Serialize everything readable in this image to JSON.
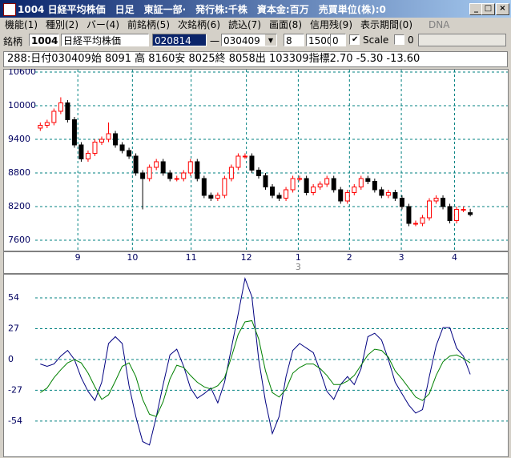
{
  "window": {
    "title": "1004 日経平均株価　日足　東証一部·　発行株:千株　資本金:百万　売買単位(株):0"
  },
  "menu": [
    "機能(1)",
    "種別(2)",
    "バー(4)",
    "前銘柄(5)",
    "次銘柄(6)",
    "読込(7)",
    "画面(8)",
    "信用残(9)",
    "表示期間(0)"
  ],
  "dna": "DNA",
  "toolbar": {
    "label": "銘柄",
    "code": "1004",
    "name": "日経平均株価",
    "from": "020814",
    "dash": "一",
    "to": "030409",
    "field1": "8",
    "field2": "1500",
    "field3": "0",
    "scale_label": "Scale",
    "field4": "0"
  },
  "info_line": "288:日付030409始 8091 高 8160安 8025終 8058出 103309指標2.70  -5.30  -13.60",
  "chart_data": [
    {
      "type": "candlestick",
      "open": [
        9600,
        9650,
        9700,
        9900,
        10050,
        9750,
        9300,
        9050,
        9150,
        9350,
        9400,
        9500,
        9300,
        9200,
        9100,
        8800,
        8700,
        8900,
        9000,
        8800,
        8700,
        8700,
        8800,
        9000,
        8700,
        8400,
        8350,
        8400,
        8700,
        8900,
        9100,
        9100,
        8850,
        8750,
        8550,
        8400,
        8350,
        8500,
        8700,
        8700,
        8450,
        8550,
        8600,
        8700,
        8500,
        8300,
        8450,
        8550,
        8700,
        8650,
        8500,
        8400,
        8450,
        8350,
        8200,
        7900,
        7900,
        8000,
        8300,
        8350,
        8200,
        7950,
        8150,
        8091
      ],
      "high": [
        9700,
        9750,
        9950,
        10150,
        10100,
        9800,
        9350,
        9200,
        9400,
        9450,
        9700,
        9550,
        9350,
        9250,
        9150,
        8850,
        8950,
        9050,
        9050,
        8850,
        8750,
        8850,
        9050,
        9050,
        8750,
        8450,
        8450,
        8750,
        8950,
        9150,
        9150,
        9150,
        8900,
        8800,
        8600,
        8450,
        8550,
        8750,
        8750,
        8750,
        8600,
        8650,
        8750,
        8750,
        8550,
        8500,
        8600,
        8750,
        8750,
        8700,
        8550,
        8500,
        8500,
        8400,
        8250,
        7950,
        8050,
        8350,
        8400,
        8400,
        8250,
        8200,
        8200,
        8160
      ],
      "low": [
        9550,
        9600,
        9650,
        9850,
        9700,
        9250,
        9000,
        9000,
        9100,
        9300,
        9350,
        9250,
        9150,
        9050,
        8750,
        8150,
        8650,
        8850,
        8750,
        8650,
        8650,
        8650,
        8750,
        8650,
        8350,
        8300,
        8300,
        8350,
        8650,
        8850,
        9050,
        8800,
        8700,
        8500,
        8350,
        8300,
        8300,
        8450,
        8650,
        8400,
        8400,
        8500,
        8550,
        8450,
        8250,
        8250,
        8400,
        8500,
        8600,
        8450,
        8350,
        8350,
        8300,
        8150,
        7850,
        7850,
        7850,
        7950,
        8250,
        8150,
        7900,
        7900,
        8100,
        8025
      ],
      "close": [
        9650,
        9700,
        9900,
        10050,
        9750,
        9300,
        9050,
        9150,
        9350,
        9400,
        9500,
        9300,
        9200,
        9100,
        8800,
        8700,
        8900,
        9000,
        8800,
        8700,
        8700,
        8800,
        9000,
        8700,
        8400,
        8350,
        8400,
        8700,
        8900,
        9100,
        9100,
        8850,
        8750,
        8550,
        8400,
        8350,
        8500,
        8700,
        8700,
        8450,
        8550,
        8600,
        8700,
        8500,
        8300,
        8450,
        8550,
        8700,
        8650,
        8500,
        8400,
        8450,
        8350,
        8200,
        7900,
        7900,
        8000,
        8300,
        8350,
        8200,
        7950,
        8150,
        8150,
        8058
      ],
      "up_color": "#ff0000",
      "down_color": "#000000",
      "xlim": [
        -5.2,
        68.5
      ],
      "xticks": [
        {
          "value": 5.5,
          "label": "9"
        },
        {
          "value": 13.5,
          "label": "10"
        },
        {
          "value": 22.1,
          "label": "11"
        },
        {
          "value": 30.2,
          "label": "12"
        },
        {
          "value": 37.8,
          "label": "1"
        },
        {
          "value": 45.3,
          "label": "2"
        },
        {
          "value": 52.9,
          "label": "3"
        },
        {
          "value": 60.7,
          "label": "4"
        }
      ],
      "year_ticks": [
        {
          "value": 37.8,
          "label": "3"
        }
      ],
      "ylim": [
        7414,
        10657
      ],
      "yticks": [
        7600,
        8200,
        8800,
        9400,
        10000,
        10600
      ],
      "grid": true
    },
    {
      "type": "line",
      "series": [
        {
          "color": "#000080",
          "values": [
            -4,
            -6,
            -4,
            3,
            8,
            0,
            -16,
            -28,
            -36,
            -20,
            14,
            20,
            14,
            -23,
            -50,
            -72,
            -75,
            -50,
            -22,
            4,
            9,
            -6,
            -25,
            -34,
            -30,
            -25,
            -38,
            -20,
            10,
            40,
            71,
            55,
            0,
            -37,
            -65,
            -50,
            -15,
            8,
            14,
            10,
            6,
            -10,
            -28,
            -35,
            -22,
            -15,
            -22,
            -8,
            20,
            23,
            17,
            0,
            -20,
            -30,
            -40,
            -47,
            -44,
            -15,
            12,
            28,
            28,
            10,
            3,
            -13
          ]
        },
        {
          "color": "#008000",
          "values": [
            -29,
            -25,
            -16,
            -9,
            -3,
            0,
            -3,
            -12,
            -24,
            -35,
            -31,
            -19,
            -6,
            -3,
            -15,
            -35,
            -48,
            -50,
            -37,
            -17,
            -5,
            -7,
            -14,
            -20,
            -24,
            -26,
            -23,
            -16,
            2,
            22,
            33,
            34,
            18,
            -10,
            -29,
            -33,
            -26,
            -12,
            -7,
            -4,
            -4,
            -8,
            -14,
            -22,
            -22,
            -19,
            -14,
            -5,
            4,
            9,
            8,
            2,
            -10,
            -17,
            -25,
            -33,
            -36,
            -30,
            -14,
            -2,
            3,
            4,
            1,
            -3
          ]
        }
      ],
      "xlim": [
        -5.2,
        68.5
      ],
      "ylim": [
        -85,
        74.4
      ],
      "yticks": [
        54,
        27,
        0,
        -27,
        -54
      ],
      "grid": true
    }
  ]
}
